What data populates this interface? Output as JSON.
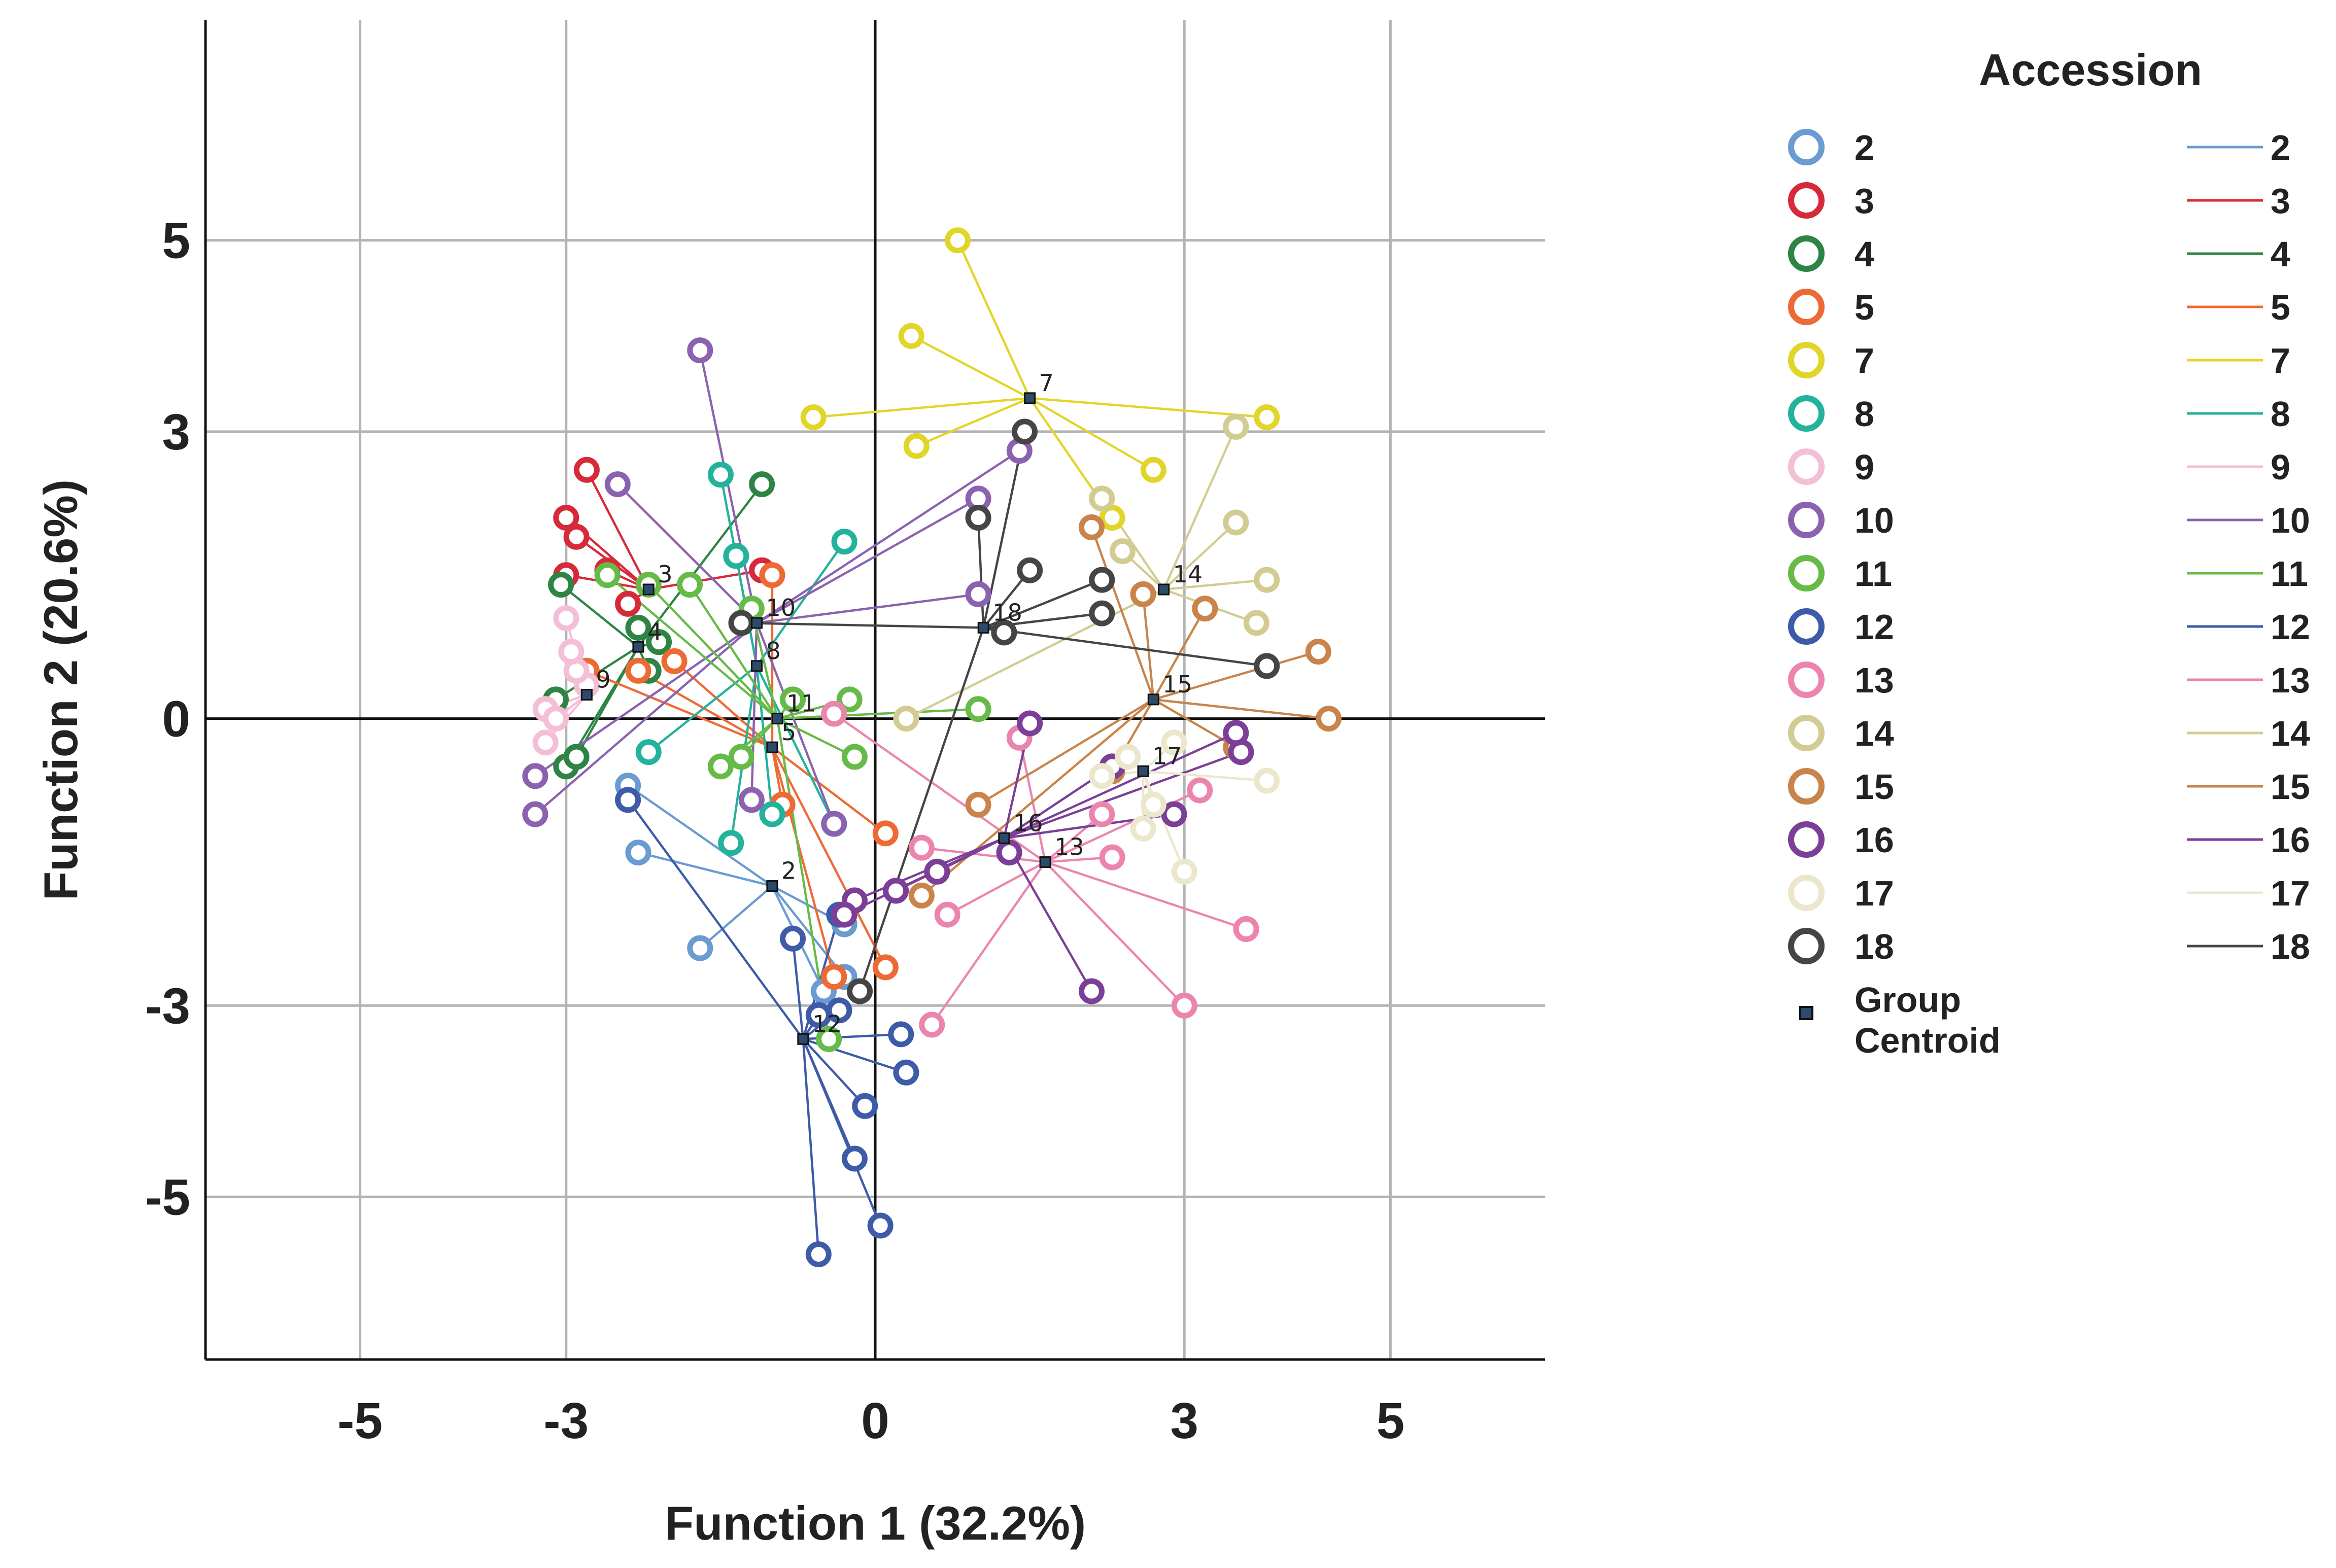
{
  "chart_data": {
    "type": "scatter",
    "subtype": "canonical discriminant function plot",
    "xlabel": "Function 1  (32.2%)",
    "ylabel": "Function 2  (20.6%)",
    "xlim": [
      -6.5,
      6.5
    ],
    "ylim": [
      -6.7,
      7.3
    ],
    "xticks": [
      -5,
      -3,
      0,
      3,
      5
    ],
    "yticks": [
      5,
      3,
      0,
      -3,
      -5
    ],
    "grid_x": [
      -5,
      -3,
      3,
      5
    ],
    "grid_y": [
      5,
      3,
      -3,
      -5
    ],
    "zero_lines": true,
    "legend": {
      "title": "Accession",
      "placement": "right",
      "centroid_label": [
        "Group",
        "Centroid"
      ]
    },
    "series": [
      {
        "name": "2",
        "color": "#6a9bd1",
        "centroid": [
          -1.0,
          -1.75
        ],
        "points": [
          [
            -2.4,
            -0.7
          ],
          [
            -2.3,
            -1.4
          ],
          [
            -1.7,
            -2.4
          ],
          [
            -0.3,
            -2.15
          ],
          [
            -0.3,
            -2.7
          ],
          [
            -0.5,
            -2.85
          ]
        ]
      },
      {
        "name": "3",
        "color": "#d62a3a",
        "centroid": [
          -2.2,
          1.35
        ],
        "points": [
          [
            -2.8,
            2.6
          ],
          [
            -3.0,
            2.1
          ],
          [
            -2.9,
            1.9
          ],
          [
            -3.0,
            1.5
          ],
          [
            -2.4,
            1.2
          ],
          [
            -1.1,
            1.55
          ],
          [
            -2.6,
            1.55
          ]
        ]
      },
      {
        "name": "4",
        "color": "#2e8445",
        "centroid": [
          -2.3,
          0.75
        ],
        "points": [
          [
            -3.1,
            0.2
          ],
          [
            -3.05,
            1.4
          ],
          [
            -3.0,
            -0.5
          ],
          [
            -2.9,
            -0.4
          ],
          [
            -2.3,
            0.95
          ],
          [
            -2.2,
            0.5
          ],
          [
            -1.1,
            2.45
          ],
          [
            -2.1,
            0.8
          ]
        ]
      },
      {
        "name": "5",
        "color": "#ee6a35",
        "centroid": [
          -1.0,
          -0.3
        ],
        "points": [
          [
            -1.0,
            1.5
          ],
          [
            -2.8,
            0.5
          ],
          [
            -1.95,
            0.6
          ],
          [
            -0.9,
            -0.9
          ],
          [
            -0.4,
            -2.7
          ],
          [
            0.1,
            -2.6
          ],
          [
            0.1,
            -1.2
          ],
          [
            -2.3,
            0.5
          ]
        ]
      },
      {
        "name": "7",
        "color": "#e2d529",
        "centroid": [
          1.5,
          3.35
        ],
        "points": [
          [
            0.8,
            5.0
          ],
          [
            0.35,
            4.0
          ],
          [
            -0.6,
            3.15
          ],
          [
            0.4,
            2.85
          ],
          [
            2.7,
            2.6
          ],
          [
            3.8,
            3.15
          ],
          [
            2.3,
            2.1
          ]
        ]
      },
      {
        "name": "8",
        "color": "#23b29c",
        "centroid": [
          -1.15,
          0.55
        ],
        "points": [
          [
            -1.5,
            2.55
          ],
          [
            -0.3,
            1.85
          ],
          [
            -1.35,
            1.7
          ],
          [
            -2.2,
            -0.35
          ],
          [
            -1.0,
            -1.0
          ],
          [
            -1.4,
            -1.3
          ],
          [
            -0.4,
            -1.1
          ]
        ]
      },
      {
        "name": "9",
        "color": "#f4bfd6",
        "centroid": [
          -2.8,
          0.25
        ],
        "points": [
          [
            -3.0,
            1.05
          ],
          [
            -3.2,
            0.1
          ],
          [
            -3.2,
            -0.25
          ],
          [
            -3.1,
            0.0
          ],
          [
            -2.8,
            0.35
          ],
          [
            -2.9,
            0.5
          ],
          [
            -2.95,
            0.7
          ]
        ]
      },
      {
        "name": "10",
        "color": "#8b62af",
        "centroid": [
          -1.15,
          1.0
        ],
        "points": [
          [
            -1.7,
            3.85
          ],
          [
            -2.5,
            2.45
          ],
          [
            -3.3,
            -0.6
          ],
          [
            -3.3,
            -1.0
          ],
          [
            -1.2,
            -0.85
          ],
          [
            1.0,
            2.3
          ],
          [
            1.4,
            2.8
          ],
          [
            1.0,
            1.3
          ],
          [
            -0.4,
            -1.1
          ]
        ]
      },
      {
        "name": "11",
        "color": "#66bb48",
        "centroid": [
          -0.95,
          0.0
        ],
        "points": [
          [
            -2.6,
            1.5
          ],
          [
            -2.2,
            1.4
          ],
          [
            -1.8,
            1.4
          ],
          [
            -1.5,
            -0.5
          ],
          [
            -1.3,
            -0.4
          ],
          [
            -0.8,
            0.2
          ],
          [
            -0.25,
            0.2
          ],
          [
            -0.2,
            -0.4
          ],
          [
            -1.2,
            1.15
          ],
          [
            1.0,
            0.1
          ],
          [
            -0.45,
            -3.35
          ]
        ]
      },
      {
        "name": "12",
        "color": "#3e5ba8",
        "centroid": [
          -0.7,
          -3.35
        ],
        "points": [
          [
            -2.4,
            -0.85
          ],
          [
            -0.8,
            -2.3
          ],
          [
            -0.55,
            -3.1
          ],
          [
            -0.35,
            -3.05
          ],
          [
            0.25,
            -3.3
          ],
          [
            0.3,
            -3.7
          ],
          [
            -0.1,
            -4.05
          ],
          [
            -0.2,
            -4.6
          ],
          [
            -0.55,
            -5.6
          ],
          [
            0.05,
            -5.3
          ],
          [
            -0.35,
            -2.05
          ]
        ]
      },
      {
        "name": "13",
        "color": "#ec85ad",
        "centroid": [
          1.65,
          -1.5
        ],
        "points": [
          [
            0.55,
            -3.2
          ],
          [
            0.7,
            -2.05
          ],
          [
            0.45,
            -1.35
          ],
          [
            2.3,
            -1.45
          ],
          [
            3.0,
            -3.0
          ],
          [
            3.6,
            -2.2
          ],
          [
            3.15,
            -0.75
          ],
          [
            2.2,
            -1.0
          ],
          [
            1.4,
            -0.2
          ],
          [
            -0.4,
            0.05
          ]
        ]
      },
      {
        "name": "14",
        "color": "#d2cc92",
        "centroid": [
          2.8,
          1.35
        ],
        "points": [
          [
            2.2,
            2.3
          ],
          [
            2.4,
            1.75
          ],
          [
            3.5,
            2.05
          ],
          [
            3.8,
            1.45
          ],
          [
            3.7,
            1.0
          ],
          [
            3.5,
            3.05
          ],
          [
            0.3,
            0.0
          ]
        ]
      },
      {
        "name": "15",
        "color": "#c8844a",
        "centroid": [
          2.7,
          0.2
        ],
        "points": [
          [
            2.1,
            2.0
          ],
          [
            2.6,
            1.3
          ],
          [
            3.2,
            1.15
          ],
          [
            4.3,
            0.7
          ],
          [
            4.4,
            0.0
          ],
          [
            2.3,
            -0.55
          ],
          [
            1.0,
            -0.9
          ],
          [
            0.45,
            -1.85
          ],
          [
            3.5,
            -0.3
          ]
        ]
      },
      {
        "name": "16",
        "color": "#7b3f98",
        "centroid": [
          1.25,
          -1.25
        ],
        "points": [
          [
            1.5,
            -0.05
          ],
          [
            3.55,
            -0.35
          ],
          [
            3.5,
            -0.15
          ],
          [
            2.9,
            -1.0
          ],
          [
            2.1,
            -2.85
          ],
          [
            0.6,
            -1.6
          ],
          [
            0.2,
            -1.8
          ],
          [
            -0.2,
            -1.9
          ],
          [
            -0.3,
            -2.05
          ],
          [
            1.3,
            -1.4
          ],
          [
            2.3,
            -0.5
          ]
        ]
      },
      {
        "name": "17",
        "color": "#ece6cc",
        "centroid": [
          2.6,
          -0.55
        ],
        "points": [
          [
            2.2,
            -0.6
          ],
          [
            2.45,
            -0.4
          ],
          [
            2.7,
            -0.9
          ],
          [
            2.6,
            -1.15
          ],
          [
            3.0,
            -1.6
          ],
          [
            3.8,
            -0.65
          ],
          [
            2.9,
            -0.25
          ]
        ]
      },
      {
        "name": "18",
        "color": "#454545",
        "centroid": [
          1.05,
          0.95
        ],
        "points": [
          [
            1.45,
            3.0
          ],
          [
            1.0,
            2.1
          ],
          [
            1.5,
            1.55
          ],
          [
            2.2,
            1.45
          ],
          [
            2.2,
            1.1
          ],
          [
            3.8,
            0.55
          ],
          [
            1.25,
            0.9
          ],
          [
            -0.15,
            -2.85
          ],
          [
            -1.3,
            1.0
          ]
        ]
      }
    ]
  }
}
